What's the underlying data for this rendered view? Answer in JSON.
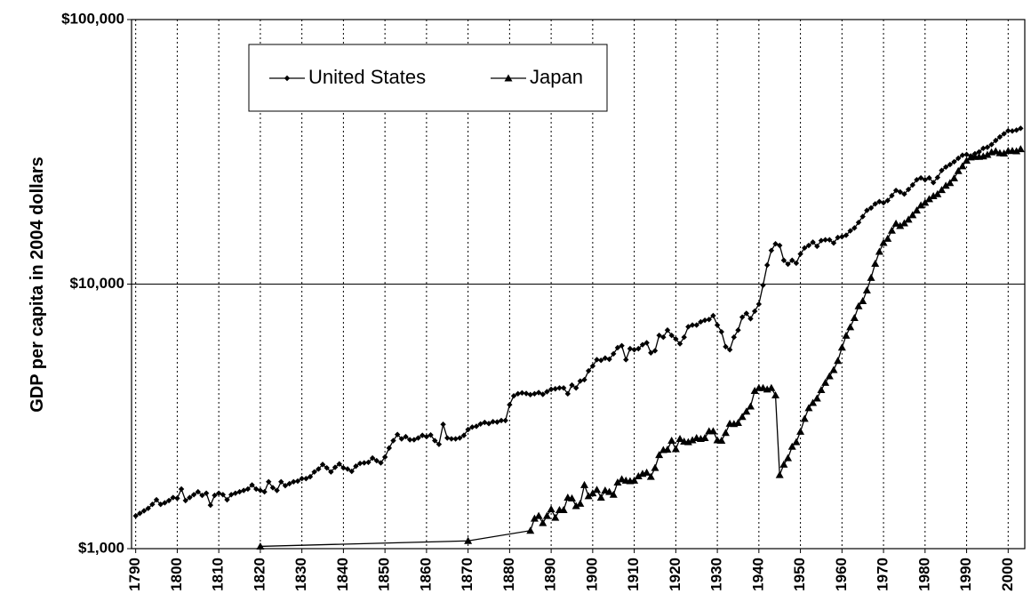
{
  "chart_data": {
    "type": "line",
    "y_label": "GDP per capita in 2004 dollars",
    "log_scale": true,
    "grid_x": "dotted",
    "xlim": [
      1789,
      2004
    ],
    "xticks": [
      1790,
      1800,
      1810,
      1820,
      1830,
      1840,
      1850,
      1860,
      1870,
      1880,
      1890,
      1900,
      1910,
      1920,
      1930,
      1940,
      1950,
      1960,
      1970,
      1980,
      1990,
      2000
    ],
    "ylim": [
      1000,
      100000
    ],
    "yticks": [
      {
        "value": 1000,
        "label": "$1,000"
      },
      {
        "value": 10000,
        "label": "$10,000"
      },
      {
        "value": 100000,
        "label": "$100,000"
      }
    ],
    "series": [
      {
        "name": "United States",
        "color": "#000000",
        "marker": "diamond",
        "x": [
          1790,
          1791,
          1792,
          1793,
          1794,
          1795,
          1796,
          1797,
          1798,
          1799,
          1800,
          1801,
          1802,
          1803,
          1804,
          1805,
          1806,
          1807,
          1808,
          1809,
          1810,
          1811,
          1812,
          1813,
          1814,
          1815,
          1816,
          1817,
          1818,
          1819,
          1820,
          1821,
          1822,
          1823,
          1824,
          1825,
          1826,
          1827,
          1828,
          1829,
          1830,
          1831,
          1832,
          1833,
          1834,
          1835,
          1836,
          1837,
          1838,
          1839,
          1840,
          1841,
          1842,
          1843,
          1844,
          1845,
          1846,
          1847,
          1848,
          1849,
          1850,
          1851,
          1852,
          1853,
          1854,
          1855,
          1856,
          1857,
          1858,
          1859,
          1860,
          1861,
          1862,
          1863,
          1864,
          1865,
          1866,
          1867,
          1868,
          1869,
          1870,
          1871,
          1872,
          1873,
          1874,
          1875,
          1876,
          1877,
          1878,
          1879,
          1880,
          1881,
          1882,
          1883,
          1884,
          1885,
          1886,
          1887,
          1888,
          1889,
          1890,
          1891,
          1892,
          1893,
          1894,
          1895,
          1896,
          1897,
          1898,
          1899,
          1900,
          1901,
          1902,
          1903,
          1904,
          1905,
          1906,
          1907,
          1908,
          1909,
          1910,
          1911,
          1912,
          1913,
          1914,
          1915,
          1916,
          1917,
          1918,
          1919,
          1920,
          1921,
          1922,
          1923,
          1924,
          1925,
          1926,
          1927,
          1928,
          1929,
          1930,
          1931,
          1932,
          1933,
          1934,
          1935,
          1936,
          1937,
          1938,
          1939,
          1940,
          1941,
          1942,
          1943,
          1944,
          1945,
          1946,
          1947,
          1948,
          1949,
          1950,
          1951,
          1952,
          1953,
          1954,
          1955,
          1956,
          1957,
          1958,
          1959,
          1960,
          1961,
          1962,
          1963,
          1964,
          1965,
          1966,
          1967,
          1968,
          1969,
          1970,
          1971,
          1972,
          1973,
          1974,
          1975,
          1976,
          1977,
          1978,
          1979,
          1980,
          1981,
          1982,
          1983,
          1984,
          1985,
          1986,
          1987,
          1988,
          1989,
          1990,
          1991,
          1992,
          1993,
          1994,
          1995,
          1996,
          1997,
          1998,
          1999,
          2000,
          2001,
          2002,
          2003
        ],
        "values": [
          1330,
          1360,
          1390,
          1420,
          1470,
          1530,
          1470,
          1490,
          1520,
          1560,
          1550,
          1680,
          1520,
          1560,
          1600,
          1640,
          1590,
          1620,
          1460,
          1590,
          1620,
          1600,
          1530,
          1600,
          1620,
          1640,
          1660,
          1680,
          1740,
          1680,
          1660,
          1640,
          1790,
          1700,
          1660,
          1790,
          1730,
          1760,
          1790,
          1800,
          1840,
          1840,
          1870,
          1950,
          2000,
          2080,
          2020,
          1950,
          2030,
          2090,
          2020,
          2000,
          1960,
          2050,
          2100,
          2110,
          2120,
          2200,
          2150,
          2110,
          2220,
          2400,
          2560,
          2700,
          2600,
          2650,
          2580,
          2580,
          2620,
          2680,
          2650,
          2690,
          2560,
          2480,
          2950,
          2620,
          2600,
          2600,
          2620,
          2680,
          2820,
          2880,
          2900,
          2960,
          3000,
          2970,
          3020,
          3010,
          3050,
          3050,
          3500,
          3780,
          3850,
          3880,
          3860,
          3820,
          3850,
          3890,
          3830,
          3920,
          4000,
          4020,
          4050,
          4050,
          3850,
          4150,
          4050,
          4300,
          4350,
          4700,
          4900,
          5180,
          5150,
          5250,
          5200,
          5450,
          5750,
          5850,
          5180,
          5700,
          5650,
          5700,
          5900,
          6000,
          5500,
          5600,
          6400,
          6300,
          6700,
          6400,
          6200,
          5950,
          6300,
          6900,
          7000,
          7000,
          7200,
          7300,
          7350,
          7600,
          7000,
          6600,
          5800,
          5650,
          6300,
          6700,
          7500,
          7750,
          7400,
          7900,
          8400,
          9900,
          11800,
          13400,
          14200,
          14000,
          12300,
          11900,
          12300,
          12000,
          13000,
          13700,
          14000,
          14400,
          13900,
          14600,
          14700,
          14700,
          14300,
          15000,
          15100,
          15300,
          15900,
          16300,
          17100,
          18000,
          19000,
          19400,
          20100,
          20500,
          20300,
          20700,
          21600,
          22600,
          22300,
          21900,
          22800,
          23700,
          24800,
          25200,
          24800,
          25200,
          24200,
          25300,
          26900,
          27700,
          28300,
          29000,
          29900,
          30700,
          30900,
          30500,
          31100,
          31600,
          32600,
          32900,
          33700,
          34900,
          36000,
          37000,
          38000,
          37900,
          38200,
          38800
        ]
      },
      {
        "name": "Japan",
        "color": "#000000",
        "marker": "triangle",
        "x": [
          1820,
          1870,
          1885,
          1886,
          1887,
          1888,
          1889,
          1890,
          1891,
          1892,
          1893,
          1894,
          1895,
          1896,
          1897,
          1898,
          1899,
          1900,
          1901,
          1902,
          1903,
          1904,
          1905,
          1906,
          1907,
          1908,
          1909,
          1910,
          1911,
          1912,
          1913,
          1914,
          1915,
          1916,
          1917,
          1918,
          1919,
          1920,
          1921,
          1922,
          1923,
          1924,
          1925,
          1926,
          1927,
          1928,
          1929,
          1930,
          1931,
          1932,
          1933,
          1934,
          1935,
          1936,
          1937,
          1938,
          1939,
          1940,
          1941,
          1942,
          1943,
          1944,
          1945,
          1946,
          1947,
          1948,
          1949,
          1950,
          1951,
          1952,
          1953,
          1954,
          1955,
          1956,
          1957,
          1958,
          1959,
          1960,
          1961,
          1962,
          1963,
          1964,
          1965,
          1966,
          1967,
          1968,
          1969,
          1970,
          1971,
          1972,
          1973,
          1974,
          1975,
          1976,
          1977,
          1978,
          1979,
          1980,
          1981,
          1982,
          1983,
          1984,
          1985,
          1986,
          1987,
          1988,
          1989,
          1990,
          1991,
          1992,
          1993,
          1994,
          1995,
          1996,
          1997,
          1998,
          1999,
          2000,
          2001,
          2002,
          2003
        ],
        "values": [
          1020,
          1070,
          1170,
          1300,
          1330,
          1250,
          1330,
          1410,
          1310,
          1400,
          1400,
          1560,
          1550,
          1450,
          1480,
          1740,
          1580,
          1620,
          1670,
          1560,
          1660,
          1640,
          1600,
          1780,
          1830,
          1810,
          1800,
          1810,
          1880,
          1920,
          1940,
          1870,
          2020,
          2260,
          2360,
          2370,
          2560,
          2380,
          2600,
          2540,
          2530,
          2570,
          2620,
          2600,
          2620,
          2780,
          2780,
          2570,
          2560,
          2740,
          2970,
          2960,
          2990,
          3150,
          3300,
          3450,
          3950,
          4050,
          4050,
          4000,
          4050,
          3800,
          1900,
          2080,
          2200,
          2430,
          2530,
          2770,
          3100,
          3400,
          3560,
          3700,
          3980,
          4240,
          4490,
          4740,
          5130,
          5760,
          6390,
          6880,
          7450,
          8260,
          8630,
          9470,
          10570,
          11950,
          13270,
          14330,
          14850,
          15940,
          16950,
          16600,
          17000,
          17540,
          18230,
          19000,
          19860,
          20320,
          20960,
          21520,
          21900,
          22700,
          23560,
          24120,
          25150,
          26770,
          27910,
          29300,
          30150,
          30310,
          30300,
          30430,
          30850,
          31530,
          31800,
          31300,
          31200,
          31900,
          31900,
          31800,
          32400
        ]
      }
    ]
  }
}
